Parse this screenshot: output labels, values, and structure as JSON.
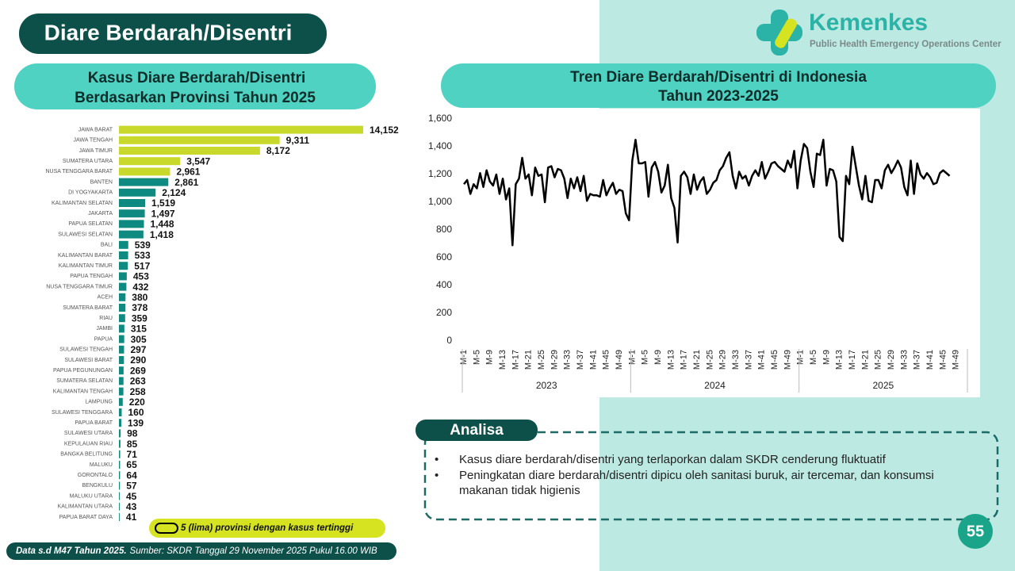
{
  "title": "Diare Berdarah/Disentri",
  "logo": {
    "name": "Kemenkes",
    "subtitle": "Public Health Emergency Operations Center"
  },
  "chart_data": [
    {
      "type": "bar",
      "horizontal": true,
      "title": [
        "Kasus Diare Berdarah/Disentri",
        "Berdasarkan Provinsi Tahun 2025"
      ],
      "categories": [
        "JAWA BARAT",
        "JAWA TENGAH",
        "JAWA TIMUR",
        "SUMATERA UTARA",
        "NUSA TENGGARA BARAT",
        "BANTEN",
        "DI YOGYAKARTA",
        "KALIMANTAN SELATAN",
        "JAKARTA",
        "PAPUA SELATAN",
        "SULAWESI SELATAN",
        "BALI",
        "KALIMANTAN BARAT",
        "KALIMANTAN TIMUR",
        "PAPUA TENGAH",
        "NUSA TENGGARA TIMUR",
        "ACEH",
        "SUMATERA BARAT",
        "RIAU",
        "JAMBI",
        "PAPUA",
        "SULAWESI TENGAH",
        "SULAWESI BARAT",
        "PAPUA PEGUNUNGAN",
        "SUMATERA SELATAN",
        "KALIMANTAN TENGAH",
        "LAMPUNG",
        "SULAWESI TENGGARA",
        "PAPUA BARAT",
        "SULAWESI UTARA",
        "KEPULAUAN RIAU",
        "BANGKA BELITUNG",
        "MALUKU",
        "GORONTALO",
        "BENGKULU",
        "MALUKU UTARA",
        "KALIMANTAN UTARA",
        "PAPUA BARAT DAYA"
      ],
      "values": [
        14152,
        9311,
        8172,
        3547,
        2961,
        2861,
        2124,
        1519,
        1497,
        1448,
        1418,
        539,
        533,
        517,
        453,
        432,
        380,
        378,
        359,
        315,
        305,
        297,
        290,
        269,
        263,
        258,
        220,
        160,
        139,
        98,
        85,
        71,
        65,
        64,
        57,
        45,
        43,
        41
      ],
      "value_labels": [
        "14,152",
        "9,311",
        "8,172",
        "3,547",
        "2,961",
        "2,861",
        "2,124",
        "1,519",
        "1,497",
        "1,448",
        "1,418",
        "539",
        "533",
        "517",
        "453",
        "432",
        "380",
        "378",
        "359",
        "315",
        "305",
        "297",
        "290",
        "269",
        "263",
        "258",
        "220",
        "160",
        "139",
        "98",
        "85",
        "71",
        "65",
        "64",
        "57",
        "45",
        "43",
        "41"
      ],
      "colors": [
        "#c9d92c",
        "#c9d92c",
        "#c9d92c",
        "#c9d92c",
        "#c9d92c",
        "#0f8a80",
        "#0f8a80",
        "#0f8a80",
        "#0f8a80",
        "#0f8a80",
        "#0f8a80",
        "#0f8a80",
        "#0f8a80",
        "#0f8a80",
        "#0f8a80",
        "#0f8a80",
        "#0f8a80",
        "#0f8a80",
        "#0f8a80",
        "#0f8a80",
        "#0f8a80",
        "#0f8a80",
        "#0f8a80",
        "#0f8a80",
        "#0f8a80",
        "#0f8a80",
        "#0f8a80",
        "#0f8a80",
        "#0f8a80",
        "#0f8a80",
        "#0f8a80",
        "#0f8a80",
        "#0f8a80",
        "#0f8a80",
        "#0f8a80",
        "#0f8a80",
        "#0f8a80",
        "#0f8a80"
      ]
    },
    {
      "type": "line",
      "title": [
        "Tren Diare Berdarah/Disentri di Indonesia",
        "Tahun 2023-2025"
      ],
      "category_groups": [
        "2023",
        "2024",
        "2025"
      ],
      "categories": [
        "M-1",
        null,
        null,
        null,
        "M-5",
        null,
        null,
        null,
        "M-9",
        null,
        null,
        null,
        "M-13",
        null,
        null,
        null,
        "M-17",
        null,
        null,
        null,
        "M-21",
        null,
        null,
        null,
        "M-25",
        null,
        null,
        null,
        "M-29",
        null,
        null,
        null,
        "M-33",
        null,
        null,
        null,
        "M-37",
        null,
        null,
        null,
        "M-41",
        null,
        null,
        null,
        "M-45",
        null,
        null,
        null,
        "M-49",
        null,
        null,
        null,
        "M-1",
        null,
        null,
        null,
        "M-5",
        null,
        null,
        null,
        "M-9",
        null,
        null,
        null,
        "M-13",
        null,
        null,
        null,
        "M-17",
        null,
        null,
        null,
        "M-21",
        null,
        null,
        null,
        "M-25",
        null,
        null,
        null,
        "M-29",
        null,
        null,
        null,
        "M-33",
        null,
        null,
        null,
        "M-37",
        null,
        null,
        null,
        "M-41",
        null,
        null,
        null,
        "M-45",
        null,
        null,
        null,
        "M-49",
        null,
        null,
        null,
        "M-1",
        null,
        null,
        null,
        "M-5",
        null,
        null,
        null,
        "M-9",
        null,
        null,
        null,
        "M-13",
        null,
        null,
        null,
        "M-17",
        null,
        null,
        null,
        "M-21",
        null,
        null,
        null,
        "M-25",
        null,
        null,
        null,
        "M-29",
        null,
        null,
        null,
        "M-33",
        null,
        null,
        null,
        "M-37",
        null,
        null,
        null,
        "M-41",
        null,
        null,
        null,
        "M-45",
        null,
        null,
        null,
        "M-49",
        null,
        null,
        null
      ],
      "series": [
        {
          "color": "#000000",
          "values": [
            1130,
            1160,
            1060,
            1130,
            1100,
            1210,
            1110,
            1230,
            1150,
            1120,
            1200,
            1060,
            1170,
            1020,
            1100,
            690,
            1130,
            1170,
            1320,
            1170,
            1200,
            1050,
            1250,
            1190,
            1200,
            1000,
            1250,
            1260,
            1180,
            1240,
            1230,
            1170,
            1030,
            1170,
            1100,
            1180,
            1080,
            1190,
            1010,
            1060,
            1050,
            1050,
            1040,
            1160,
            1050,
            1100,
            1140,
            1060,
            1090,
            1080,
            920,
            870,
            1300,
            1450,
            1280,
            1280,
            1290,
            1040,
            1250,
            1290,
            1220,
            1070,
            1120,
            1270,
            1030,
            960,
            710,
            1190,
            1220,
            1180,
            1060,
            1200,
            1090,
            1150,
            1180,
            1060,
            1090,
            1140,
            1160,
            1230,
            1260,
            1320,
            1360,
            1190,
            1100,
            1220,
            1170,
            1190,
            1120,
            1190,
            1230,
            1190,
            1290,
            1170,
            1220,
            1280,
            1290,
            1260,
            1240,
            1220,
            1300,
            1250,
            1370,
            1100,
            1300,
            1420,
            1390,
            1220,
            1110,
            1350,
            1340,
            1450,
            1120,
            1240,
            1230,
            1150,
            750,
            720,
            1190,
            1130,
            1400,
            1260,
            1120,
            1020,
            1190,
            1010,
            1000,
            1160,
            1160,
            1100,
            1230,
            1270,
            1210,
            1250,
            1300,
            1250,
            1110,
            1050,
            1300,
            1060,
            1280,
            1200,
            1170,
            1210,
            1180,
            1130,
            1140,
            1210,
            1230,
            1210,
            1190,
            null,
            null,
            null,
            null,
            null
          ]
        }
      ],
      "ylim": [
        0,
        1600
      ],
      "yticks": [
        0,
        200,
        400,
        600,
        800,
        {
          "value": 1000,
          "label": "1,000"
        },
        {
          "value": 1200,
          "label": "1,200"
        },
        {
          "value": 1400,
          "label": "1,400"
        },
        {
          "value": 1600,
          "label": "1,600"
        }
      ],
      "grid": false
    }
  ],
  "legend_note": "5 (lima) provinsi dengan kasus tertinggi",
  "source": {
    "lead": "Data s.d M47 Tahun 2025.",
    "text": "Sumber: SKDR Tanggal 29 November 2025 Pukul 16.00 WIB"
  },
  "analysis": {
    "title": "Analisa",
    "items": [
      "Kasus diare berdarah/disentri yang terlaporkan dalam SKDR cenderung fluktuatif",
      "Peningkatan diare berdarah/disentri dipicu oleh sanitasi buruk, air tercemar, dan konsumsi makanan tidak higienis"
    ]
  },
  "page_number": "55"
}
